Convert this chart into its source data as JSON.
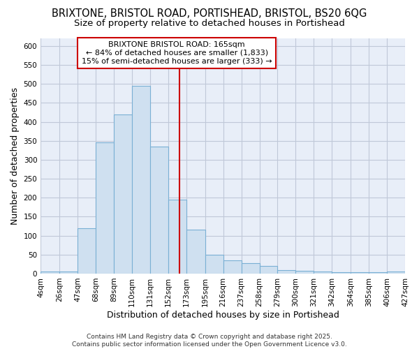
{
  "title_line1": "BRIXTONE, BRISTOL ROAD, PORTISHEAD, BRISTOL, BS20 6QG",
  "title_line2": "Size of property relative to detached houses in Portishead",
  "xlabel": "Distribution of detached houses by size in Portishead",
  "ylabel": "Number of detached properties",
  "bin_edges": [
    4,
    26,
    47,
    68,
    89,
    110,
    131,
    152,
    173,
    195,
    216,
    237,
    258,
    279,
    300,
    321,
    342,
    364,
    385,
    406,
    427
  ],
  "bar_heights": [
    5,
    5,
    120,
    345,
    420,
    495,
    335,
    195,
    115,
    50,
    35,
    28,
    20,
    10,
    7,
    5,
    3,
    4,
    4,
    5
  ],
  "bar_color": "#cfe0f0",
  "bar_edge_color": "#7ab0d4",
  "vline_x": 165,
  "vline_color": "#cc0000",
  "annotation_title": "BRIXTONE BRISTOL ROAD: 165sqm",
  "annotation_line2": "← 84% of detached houses are smaller (1,833)",
  "annotation_line3": "15% of semi-detached houses are larger (333) →",
  "annotation_box_edgecolor": "#cc0000",
  "annotation_box_facecolor": "white",
  "ylim": [
    0,
    620
  ],
  "yticks": [
    0,
    50,
    100,
    150,
    200,
    250,
    300,
    350,
    400,
    450,
    500,
    550,
    600
  ],
  "fig_background_color": "white",
  "plot_bg_color": "#e8eef8",
  "grid_color": "#c0c8d8",
  "footer_text": "Contains HM Land Registry data © Crown copyright and database right 2025.\nContains public sector information licensed under the Open Government Licence v3.0.",
  "title_fontsize": 10.5,
  "subtitle_fontsize": 9.5,
  "axis_label_fontsize": 9,
  "tick_fontsize": 7.5,
  "annotation_fontsize": 8,
  "footer_fontsize": 6.5
}
